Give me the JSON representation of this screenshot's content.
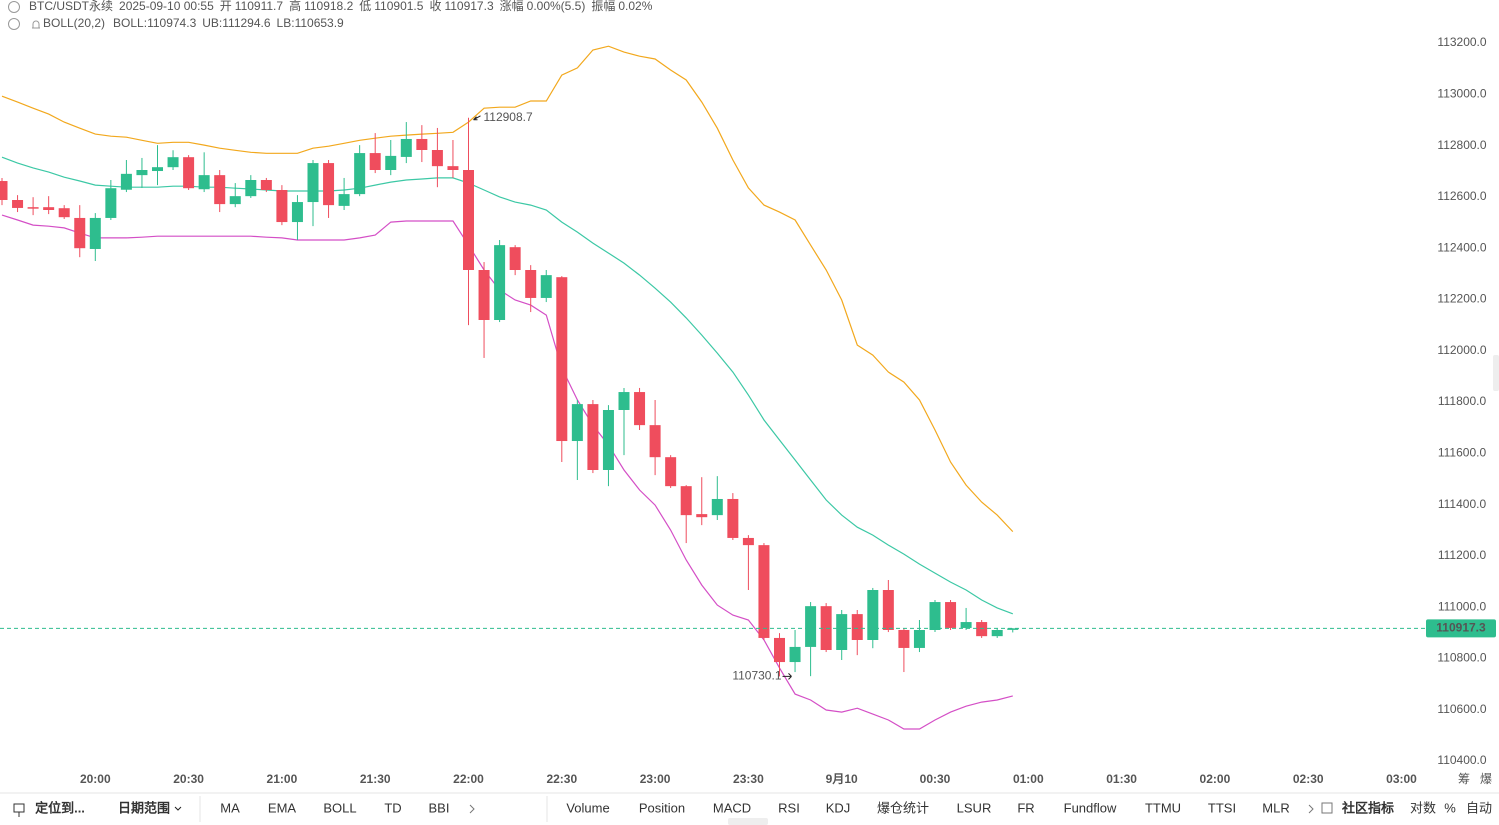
{
  "chart_data": {
    "type": "candlestick",
    "header": {
      "symbol": "BTC/USDT永续",
      "time": "2025-09-10 00:55",
      "open_label": "开",
      "high_label": "高",
      "low_label": "低",
      "close_label": "收",
      "change_label": "涨幅",
      "change": "0.00%(5.5)",
      "amplitude_label": "振幅",
      "amplitude": "0.02%",
      "indicator": "BOLL(20,2)"
    },
    "x": [
      "19:30",
      "19:35",
      "19:40",
      "19:45",
      "19:50",
      "19:55",
      "20:00",
      "20:05",
      "20:10",
      "20:15",
      "20:20",
      "20:25",
      "20:30",
      "20:35",
      "20:40",
      "20:45",
      "20:50",
      "20:55",
      "21:00",
      "21:05",
      "21:10",
      "21:15",
      "21:20",
      "21:25",
      "21:30",
      "21:35",
      "21:40",
      "21:45",
      "21:50",
      "21:55",
      "22:00",
      "22:05",
      "22:10",
      "22:15",
      "22:20",
      "22:25",
      "22:30",
      "22:35",
      "22:40",
      "22:45",
      "22:50",
      "22:55",
      "23:00",
      "23:05",
      "23:10",
      "23:15",
      "23:20",
      "23:25",
      "23:30",
      "23:35",
      "23:40",
      "23:45",
      "23:50",
      "23:55",
      "00:00",
      "00:05",
      "00:10",
      "00:15",
      "00:20",
      "00:25",
      "00:30",
      "00:35",
      "00:40",
      "00:45",
      "00:50",
      "00:55"
    ],
    "open": [
      112662,
      112588,
      112560,
      112560,
      112556,
      112518,
      112397,
      112518,
      112628,
      112685,
      112701,
      112716,
      112755,
      112630,
      112685,
      112572,
      112603,
      112666,
      112627,
      112502,
      112580,
      112732,
      112565,
      112611,
      112771,
      112705,
      112756,
      112826,
      112783,
      112720,
      112705,
      112315,
      112120,
      112404,
      112315,
      112206,
      112287,
      111648,
      111792,
      111535,
      111769,
      111839,
      111710,
      111585,
      111472,
      111363,
      111359,
      111422,
      111270,
      111242,
      110880,
      110786,
      110845,
      111004,
      110833,
      110973,
      110872,
      111067,
      110911,
      110841,
      110911,
      111020,
      110919,
      110942,
      110887,
      110911.7
    ],
    "high": [
      112674,
      112607,
      112599,
      112603,
      112568,
      112568,
      112537,
      112666,
      112744,
      112752,
      112802,
      112782,
      112763,
      112774,
      112705,
      112654,
      112685,
      112674,
      112646,
      112607,
      112744,
      112744,
      112674,
      112802,
      112849,
      112822,
      112892,
      112880,
      112869,
      112822,
      112908.7,
      112346,
      112432,
      112412,
      112334,
      112315,
      112291,
      111808,
      111808,
      111788,
      111855,
      111855,
      111808,
      111593,
      111476,
      111507,
      111511,
      111445,
      111281,
      111250,
      110899,
      110911,
      111020,
      111016,
      110989,
      110989,
      111075,
      111106,
      110919,
      110950,
      111028,
      111028,
      110997,
      110950,
      110919,
      110918.2
    ],
    "low": [
      112568,
      112541,
      112529,
      112533,
      112514,
      112365,
      112350,
      112510,
      112619,
      112635,
      112646,
      112705,
      112627,
      112619,
      112541,
      112560,
      112596,
      112619,
      112490,
      112432,
      112486,
      112518,
      112549,
      112603,
      112693,
      112685,
      112732,
      112736,
      112638,
      112674,
      112100,
      111972,
      112112,
      112295,
      112151,
      112190,
      111566,
      111496,
      111523,
      111472,
      111593,
      111691,
      111515,
      111465,
      111250,
      111320,
      111340,
      111262,
      111067,
      110872,
      110730.1,
      110747,
      110731,
      110825,
      110794,
      110813,
      110840,
      110903,
      110747,
      110825,
      110903,
      110911,
      110911,
      110880,
      110880,
      110901.5
    ],
    "close": [
      112588,
      112557,
      112555,
      112549,
      112521,
      112400,
      112518,
      112634,
      112690,
      112705,
      112716,
      112755,
      112634,
      112685,
      112572,
      112603,
      112666,
      112627,
      112502,
      112580,
      112732,
      112568,
      112611,
      112771,
      112705,
      112760,
      112826,
      112783,
      112720,
      112705,
      112315,
      112120,
      112412,
      112315,
      112206,
      112295,
      111648,
      111792,
      111535,
      111769,
      111839,
      111710,
      111585,
      111472,
      111359,
      111351,
      111422,
      111270,
      111242,
      110880,
      110786,
      110845,
      111004,
      110833,
      110973,
      110872,
      111067,
      110911,
      110841,
      110911,
      111020,
      110919,
      110942,
      110887,
      110911,
      110917.3
    ],
    "up_color": "#2ebd8e",
    "down_color": "#ef4d5d",
    "series": [
      {
        "name": "BOLL:",
        "color": "#3cc8a5",
        "values": [
          112755,
          112732,
          112713,
          112697,
          112677,
          112662,
          112646,
          112642,
          112638,
          112638,
          112638,
          112642,
          112642,
          112638,
          112638,
          112634,
          112631,
          112627,
          112623,
          112623,
          112623,
          112623,
          112627,
          112634,
          112646,
          112658,
          112666,
          112670,
          112674,
          112674,
          112654,
          112627,
          112600,
          112580,
          112568,
          112549,
          112502,
          112463,
          112420,
          112381,
          112342,
          112295,
          112244,
          112190,
          112128,
          112061,
          111991,
          111917,
          111827,
          111730,
          111652,
          111574,
          111496,
          111418,
          111359,
          111312,
          111281,
          111242,
          111207,
          111168,
          111133,
          111098,
          111067,
          111028,
          110997,
          110974.3
        ]
      },
      {
        "name": "UB:",
        "color": "#f2a81d",
        "values": [
          112993,
          112970,
          112946,
          112923,
          112892,
          112868,
          112845,
          112837,
          112833,
          112821,
          112809,
          112813,
          112813,
          112802,
          112790,
          112782,
          112774,
          112770,
          112770,
          112770,
          112790,
          112798,
          112809,
          112821,
          112829,
          112837,
          112841,
          112845,
          112848,
          112852,
          112892,
          112946,
          112950,
          112950,
          112974,
          112974,
          113075,
          113103,
          113173,
          113188,
          113165,
          113149,
          113138,
          113095,
          113056,
          112970,
          112868,
          112744,
          112635,
          112568,
          112541,
          112510,
          112412,
          112315,
          112198,
          112022,
          111983,
          111917,
          111878,
          111808,
          111691,
          111566,
          111476,
          111410,
          111359,
          111294.6
        ]
      },
      {
        "name": "LB:",
        "color": "#d44fc6",
        "values": [
          112529,
          112510,
          112490,
          112486,
          112479,
          112459,
          112440,
          112440,
          112440,
          112443,
          112447,
          112447,
          112447,
          112447,
          112447,
          112447,
          112447,
          112443,
          112440,
          112432,
          112432,
          112432,
          112432,
          112440,
          112451,
          112502,
          112506,
          112506,
          112506,
          112506,
          112412,
          112315,
          112237,
          112198,
          112178,
          112139,
          111933,
          111808,
          111710,
          111632,
          111535,
          111457,
          111398,
          111301,
          111184,
          111086,
          111008,
          110969,
          110950,
          110872,
          110763,
          110661,
          110638,
          110599,
          110591,
          110606,
          110583,
          110560,
          110525,
          110525,
          110560,
          110591,
          110614,
          110630,
          110638,
          110653.9
        ]
      }
    ],
    "ylim": [
      110365,
      113368
    ],
    "yticks": [
      {
        "value": 110400,
        "label": "110400.0"
      },
      {
        "value": 110600,
        "label": "110600.0"
      },
      {
        "value": 110800,
        "label": "110800.0"
      },
      {
        "value": 111000,
        "label": "111000.0"
      },
      {
        "value": 111200,
        "label": "111200.0"
      },
      {
        "value": 111400,
        "label": "111400.0"
      },
      {
        "value": 111600,
        "label": "111600.0"
      },
      {
        "value": 111800,
        "label": "111800.0"
      },
      {
        "value": 112000,
        "label": "112000.0"
      },
      {
        "value": 112200,
        "label": "112200.0"
      },
      {
        "value": 112400,
        "label": "112400.0"
      },
      {
        "value": 112600,
        "label": "112600.0"
      },
      {
        "value": 112800,
        "label": "112800.0"
      },
      {
        "value": 113000,
        "label": "113000.0"
      },
      {
        "value": 113200,
        "label": "113200.0"
      }
    ],
    "xticks": [
      "20:00",
      "20:30",
      "21:00",
      "21:30",
      "22:00",
      "22:30",
      "23:00",
      "23:30",
      {
        "value": "00:00",
        "label": "9月10"
      },
      "00:30",
      "01:00",
      "01:30",
      "02:00",
      "02:30",
      "03:00"
    ],
    "side_labels": [
      "筹",
      "爆"
    ]
  },
  "toolbar": {
    "left": [
      "定位到...",
      "日期范围"
    ],
    "main": [
      "MA",
      "EMA",
      "BOLL",
      "TD",
      "BBI"
    ],
    "sub": [
      "Volume",
      "Position",
      "MACD",
      "RSI",
      "KDJ",
      "爆仓统计",
      "LSUR",
      "FR",
      "Fundflow",
      "TTMU",
      "TTSI",
      "MLR"
    ],
    "right": [
      "社区指标",
      "对数",
      "%",
      "自动"
    ]
  }
}
